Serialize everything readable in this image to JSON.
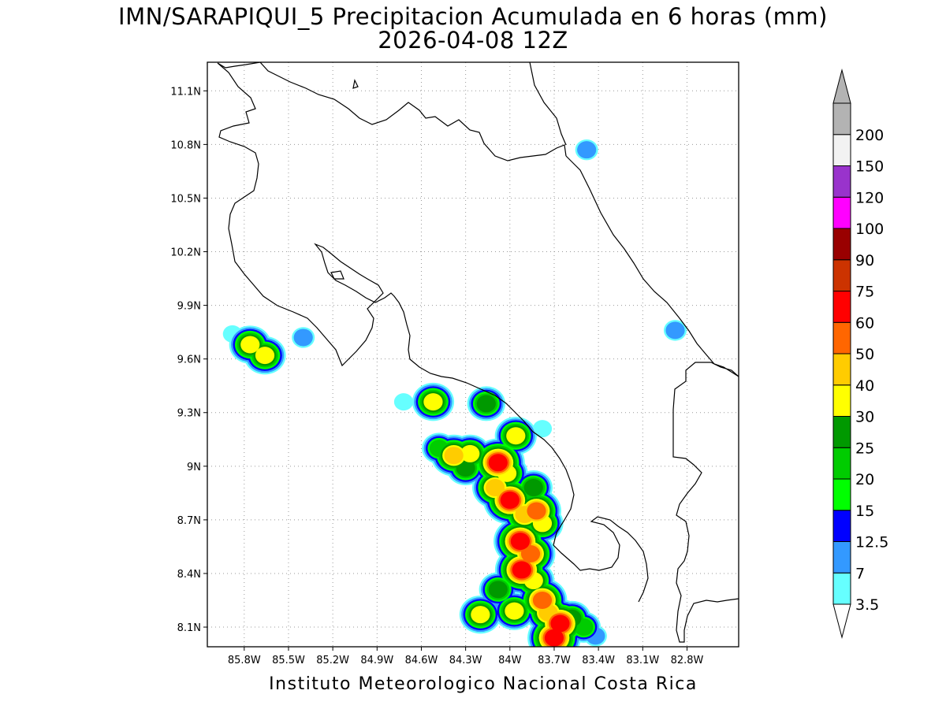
{
  "title": {
    "line1": "IMN/SARAPIQUI_5 Precipitacion Acumulada en 6 horas (mm)",
    "line2": "2026-04-08 12Z"
  },
  "credit": "Instituto Meteorologico Nacional Costa Rica",
  "map": {
    "projection": "lat-lon",
    "lon_range": [
      -86.05,
      -82.45
    ],
    "lat_range": [
      7.99,
      11.26
    ],
    "grid": "dotted",
    "lon_ticks": [
      {
        "value": -85.8,
        "label": "85.8W"
      },
      {
        "value": -85.5,
        "label": "85.5W"
      },
      {
        "value": -85.2,
        "label": "85.2W"
      },
      {
        "value": -84.9,
        "label": "84.9W"
      },
      {
        "value": -84.6,
        "label": "84.6W"
      },
      {
        "value": -84.3,
        "label": "84.3W"
      },
      {
        "value": -84.0,
        "label": "84W"
      },
      {
        "value": -83.7,
        "label": "83.7W"
      },
      {
        "value": -83.4,
        "label": "83.4W"
      },
      {
        "value": -83.1,
        "label": "83.1W"
      },
      {
        "value": -82.8,
        "label": "82.8W"
      }
    ],
    "lat_ticks": [
      {
        "value": 8.1,
        "label": "8.1N"
      },
      {
        "value": 8.4,
        "label": "8.4N"
      },
      {
        "value": 8.7,
        "label": "8.7N"
      },
      {
        "value": 9.0,
        "label": "9N"
      },
      {
        "value": 9.3,
        "label": "9.3N"
      },
      {
        "value": 9.6,
        "label": "9.6N"
      },
      {
        "value": 9.9,
        "label": "9.9N"
      },
      {
        "value": 10.2,
        "label": "10.2N"
      },
      {
        "value": 10.5,
        "label": "10.5N"
      },
      {
        "value": 10.8,
        "label": "10.8N"
      },
      {
        "value": 11.1,
        "label": "11.1N"
      }
    ]
  },
  "colorbar": {
    "levels": [
      {
        "label": "3.5",
        "color": "#66ffff"
      },
      {
        "label": "7",
        "color": "#3399ff"
      },
      {
        "label": "12.5",
        "color": "#0000ff"
      },
      {
        "label": "15",
        "color": "#00ff00"
      },
      {
        "label": "20",
        "color": "#00cc00"
      },
      {
        "label": "25",
        "color": "#009900"
      },
      {
        "label": "30",
        "color": "#ffff00"
      },
      {
        "label": "40",
        "color": "#ffcc00"
      },
      {
        "label": "50",
        "color": "#ff6600"
      },
      {
        "label": "60",
        "color": "#ff0000"
      },
      {
        "label": "75",
        "color": "#cc3300"
      },
      {
        "label": "90",
        "color": "#990000"
      },
      {
        "label": "100",
        "color": "#ff00ff"
      },
      {
        "label": "120",
        "color": "#9933cc"
      },
      {
        "label": "150",
        "color": "#f2f2f2"
      },
      {
        "label": "200",
        "color": "#b3b3b3"
      }
    ]
  },
  "precip_cells": [
    {
      "lon": -85.76,
      "lat": 9.68,
      "mm": 30
    },
    {
      "lon": -85.66,
      "lat": 9.62,
      "mm": 30
    },
    {
      "lon": -85.4,
      "lat": 9.72,
      "mm": 7
    },
    {
      "lon": -85.88,
      "lat": 9.74,
      "mm": 3.5
    },
    {
      "lon": -84.52,
      "lat": 9.36,
      "mm": 30
    },
    {
      "lon": -84.16,
      "lat": 9.35,
      "mm": 25
    },
    {
      "lon": -84.72,
      "lat": 9.36,
      "mm": 3.5
    },
    {
      "lon": -83.48,
      "lat": 10.77,
      "mm": 7
    },
    {
      "lon": -82.88,
      "lat": 9.76,
      "mm": 7
    },
    {
      "lon": -84.48,
      "lat": 9.1,
      "mm": 20
    },
    {
      "lon": -84.38,
      "lat": 9.06,
      "mm": 40
    },
    {
      "lon": -84.27,
      "lat": 9.07,
      "mm": 30
    },
    {
      "lon": -84.08,
      "lat": 9.02,
      "mm": 60
    },
    {
      "lon": -84.02,
      "lat": 8.96,
      "mm": 30
    },
    {
      "lon": -84.3,
      "lat": 8.99,
      "mm": 25
    },
    {
      "lon": -83.96,
      "lat": 9.17,
      "mm": 30
    },
    {
      "lon": -84.1,
      "lat": 8.88,
      "mm": 40
    },
    {
      "lon": -84.0,
      "lat": 8.81,
      "mm": 60
    },
    {
      "lon": -83.9,
      "lat": 8.73,
      "mm": 40
    },
    {
      "lon": -83.82,
      "lat": 8.75,
      "mm": 50
    },
    {
      "lon": -83.84,
      "lat": 8.88,
      "mm": 25
    },
    {
      "lon": -83.78,
      "lat": 8.68,
      "mm": 30
    },
    {
      "lon": -83.93,
      "lat": 8.58,
      "mm": 60
    },
    {
      "lon": -83.86,
      "lat": 8.51,
      "mm": 50
    },
    {
      "lon": -83.92,
      "lat": 8.42,
      "mm": 60
    },
    {
      "lon": -83.84,
      "lat": 8.36,
      "mm": 30
    },
    {
      "lon": -83.78,
      "lat": 8.25,
      "mm": 50
    },
    {
      "lon": -83.74,
      "lat": 8.18,
      "mm": 40
    },
    {
      "lon": -83.66,
      "lat": 8.12,
      "mm": 60
    },
    {
      "lon": -83.7,
      "lat": 8.04,
      "mm": 60
    },
    {
      "lon": -83.58,
      "lat": 8.15,
      "mm": 25
    },
    {
      "lon": -83.5,
      "lat": 8.1,
      "mm": 20
    },
    {
      "lon": -83.97,
      "lat": 8.19,
      "mm": 30
    },
    {
      "lon": -84.08,
      "lat": 8.31,
      "mm": 25
    },
    {
      "lon": -84.2,
      "lat": 8.17,
      "mm": 30
    },
    {
      "lon": -83.42,
      "lat": 8.05,
      "mm": 7
    },
    {
      "lon": -83.78,
      "lat": 9.21,
      "mm": 3.5
    }
  ]
}
